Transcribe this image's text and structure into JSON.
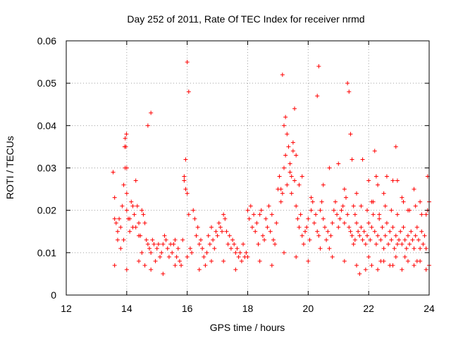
{
  "chart_data": {
    "type": "scatter",
    "title": "Day 252 of 2011, Rate Of TEC Index for receiver nrmd",
    "xlabel": "GPS time / hours",
    "ylabel": "ROTI / TECUs",
    "xlim": [
      12,
      24
    ],
    "ylim": [
      0,
      0.06
    ],
    "xticks": [
      "12",
      "14",
      "16",
      "18",
      "20",
      "22",
      "24"
    ],
    "yticks": [
      "0",
      "0.01",
      "0.02",
      "0.03",
      "0.04",
      "0.05",
      "0.06"
    ],
    "grid": true,
    "marker": "plus",
    "color": "#ff0000",
    "series": [
      {
        "x": [
          13.55,
          13.6,
          13.65,
          13.7,
          13.75,
          13.8,
          13.85,
          13.9,
          13.95,
          14.0,
          14.05,
          14.1,
          14.15,
          14.2,
          14.25,
          14.3,
          14.35,
          14.4,
          14.45,
          14.5,
          14.55,
          14.6,
          14.65,
          14.7,
          14.75,
          14.8,
          14.85,
          14.9,
          14.95,
          15.0,
          15.05,
          15.1,
          15.15,
          15.2,
          15.25,
          15.3,
          15.35,
          15.4,
          15.45,
          15.5,
          15.55,
          15.6,
          15.65,
          15.7,
          15.75,
          15.8,
          15.85,
          15.9,
          15.95,
          16.0,
          16.05,
          16.1,
          16.15,
          16.2,
          16.25,
          16.3,
          16.35,
          16.4,
          16.45,
          16.5,
          16.55,
          16.6,
          16.65,
          16.7,
          16.75,
          16.8,
          16.85,
          16.9,
          16.95,
          17.0,
          17.05,
          17.1,
          17.15,
          17.2,
          17.25,
          17.3,
          17.35,
          17.4,
          17.45,
          17.5,
          17.55,
          17.6,
          17.65,
          17.7,
          17.75,
          17.8,
          17.85,
          17.9,
          17.95,
          18.0,
          18.05,
          18.1,
          18.15,
          18.2,
          18.25,
          18.3,
          18.35,
          18.4,
          18.45,
          18.5,
          18.55,
          18.6,
          18.65,
          18.7,
          18.75,
          18.8,
          18.85,
          18.9,
          18.95,
          19.0,
          19.05,
          19.1,
          19.15,
          19.2,
          19.25,
          19.3,
          19.35,
          19.4,
          19.45,
          19.5,
          19.55,
          19.6,
          19.65,
          19.7,
          19.75,
          19.8,
          19.85,
          19.9,
          19.95,
          20.0,
          20.05,
          20.1,
          20.15,
          20.2,
          20.25,
          20.3,
          20.35,
          20.4,
          20.45,
          20.5,
          20.55,
          20.6,
          20.65,
          20.7,
          20.75,
          20.8,
          20.85,
          20.9,
          20.95,
          21.0,
          21.05,
          21.1,
          21.15,
          21.2,
          21.25,
          21.3,
          21.35,
          21.4,
          21.45,
          21.5,
          21.55,
          21.6,
          21.65,
          21.7,
          21.75,
          21.8,
          21.85,
          21.9,
          21.95,
          22.0,
          22.05,
          22.1,
          22.15,
          22.2,
          22.25,
          22.3,
          22.35,
          22.4,
          22.45,
          22.5,
          22.55,
          22.6,
          22.65,
          22.7,
          22.75,
          22.8,
          22.85,
          22.9,
          22.95,
          23.0,
          23.05,
          23.1,
          23.15,
          23.2,
          23.25,
          23.3,
          23.35,
          23.4,
          23.45,
          23.5,
          23.55,
          23.6,
          23.65,
          23.7,
          23.75,
          23.8,
          23.85,
          23.9,
          23.95,
          24.0,
          13.6,
          13.7,
          13.8,
          13.9,
          14.0,
          14.1,
          14.2,
          14.3,
          14.4,
          14.5,
          14.6,
          14.7,
          14.8,
          13.95,
          13.97,
          13.99,
          14.0,
          13.93,
          15.9,
          15.95,
          16.0,
          16.05,
          19.15,
          19.2,
          19.25,
          19.3,
          19.5,
          19.55,
          19.6,
          20.3,
          20.35,
          21.3,
          21.35,
          21.4,
          21.45,
          22.2,
          22.25,
          22.9,
          22.95,
          19.1,
          19.4,
          19.45,
          19.7,
          19.8,
          20.1,
          20.5,
          20.7,
          21.0,
          21.2,
          21.5,
          21.6,
          21.8,
          22.0,
          22.1,
          22.3,
          22.5,
          22.6,
          22.8,
          23.1,
          23.3,
          23.5,
          23.7,
          23.9,
          13.6,
          14.0,
          14.4,
          14.8,
          15.2,
          15.6,
          16.0,
          16.4,
          16.8,
          17.2,
          17.6,
          18.0,
          18.4,
          18.8,
          19.2,
          19.6,
          20.0,
          20.4,
          20.8,
          21.2,
          21.6,
          22.0,
          22.4,
          22.8,
          23.2,
          23.6,
          24.0,
          21.7,
          21.9,
          22.1,
          22.3,
          22.5,
          22.7,
          22.9,
          23.1,
          23.3,
          23.5,
          23.7,
          23.9,
          21.55,
          21.75,
          21.95,
          22.15,
          22.35,
          22.55,
          22.75,
          22.95,
          23.15,
          23.35,
          23.55,
          23.75,
          23.95
        ],
        "y": [
          0.029,
          0.023,
          0.017,
          0.013,
          0.018,
          0.016,
          0.021,
          0.026,
          0.03,
          0.02,
          0.018,
          0.015,
          0.022,
          0.016,
          0.019,
          0.027,
          0.021,
          0.017,
          0.014,
          0.02,
          0.019,
          0.017,
          0.013,
          0.012,
          0.011,
          0.01,
          0.013,
          0.012,
          0.008,
          0.011,
          0.012,
          0.009,
          0.01,
          0.012,
          0.014,
          0.013,
          0.011,
          0.009,
          0.012,
          0.01,
          0.012,
          0.013,
          0.009,
          0.011,
          0.008,
          0.007,
          0.013,
          0.028,
          0.032,
          0.024,
          0.019,
          0.011,
          0.01,
          0.02,
          0.018,
          0.014,
          0.016,
          0.012,
          0.013,
          0.011,
          0.009,
          0.007,
          0.01,
          0.014,
          0.012,
          0.016,
          0.013,
          0.011,
          0.015,
          0.014,
          0.017,
          0.016,
          0.015,
          0.019,
          0.018,
          0.015,
          0.012,
          0.014,
          0.011,
          0.013,
          0.012,
          0.01,
          0.011,
          0.009,
          0.01,
          0.008,
          0.012,
          0.009,
          0.01,
          0.02,
          0.018,
          0.021,
          0.016,
          0.019,
          0.015,
          0.017,
          0.012,
          0.019,
          0.02,
          0.014,
          0.013,
          0.018,
          0.016,
          0.021,
          0.015,
          0.019,
          0.013,
          0.012,
          0.017,
          0.025,
          0.028,
          0.022,
          0.024,
          0.03,
          0.033,
          0.026,
          0.035,
          0.031,
          0.028,
          0.036,
          0.027,
          0.021,
          0.018,
          0.016,
          0.019,
          0.014,
          0.012,
          0.015,
          0.016,
          0.018,
          0.013,
          0.02,
          0.022,
          0.017,
          0.019,
          0.015,
          0.014,
          0.02,
          0.022,
          0.018,
          0.016,
          0.013,
          0.015,
          0.011,
          0.014,
          0.017,
          0.02,
          0.022,
          0.019,
          0.016,
          0.018,
          0.02,
          0.021,
          0.017,
          0.023,
          0.019,
          0.016,
          0.015,
          0.014,
          0.012,
          0.013,
          0.017,
          0.015,
          0.014,
          0.016,
          0.013,
          0.015,
          0.012,
          0.014,
          0.017,
          0.013,
          0.016,
          0.019,
          0.015,
          0.012,
          0.014,
          0.018,
          0.013,
          0.016,
          0.011,
          0.014,
          0.017,
          0.012,
          0.015,
          0.013,
          0.016,
          0.011,
          0.014,
          0.012,
          0.013,
          0.015,
          0.012,
          0.016,
          0.013,
          0.011,
          0.014,
          0.012,
          0.015,
          0.013,
          0.011,
          0.014,
          0.016,
          0.013,
          0.011,
          0.015,
          0.012,
          0.014,
          0.011,
          0.028,
          0.022,
          0.018,
          0.015,
          0.011,
          0.013,
          0.024,
          0.018,
          0.021,
          0.016,
          0.014,
          0.01,
          0.007,
          0.04,
          0.043,
          0.037,
          0.035,
          0.038,
          0.03,
          0.035,
          0.027,
          0.025,
          0.055,
          0.048,
          0.052,
          0.04,
          0.042,
          0.038,
          0.034,
          0.044,
          0.033,
          0.047,
          0.054,
          0.05,
          0.048,
          0.038,
          0.032,
          0.034,
          0.028,
          0.035,
          0.027,
          0.025,
          0.029,
          0.024,
          0.026,
          0.028,
          0.023,
          0.026,
          0.03,
          0.031,
          0.025,
          0.021,
          0.024,
          0.032,
          0.027,
          0.022,
          0.026,
          0.024,
          0.028,
          0.027,
          0.023,
          0.02,
          0.025,
          0.022,
          0.019,
          0.007,
          0.006,
          0.008,
          0.006,
          0.005,
          0.007,
          0.009,
          0.006,
          0.008,
          0.008,
          0.006,
          0.009,
          0.008,
          0.007,
          0.01,
          0.009,
          0.008,
          0.011,
          0.009,
          0.008,
          0.007,
          0.009,
          0.008,
          0.007,
          0.009,
          0.008,
          0.007,
          0.005,
          0.006,
          0.007,
          0.006,
          0.008,
          0.007,
          0.009,
          0.006,
          0.008,
          0.007,
          0.008,
          0.006,
          0.019,
          0.021,
          0.02,
          0.022,
          0.019,
          0.021,
          0.02,
          0.019,
          0.022,
          0.02,
          0.021,
          0.019,
          0.02
        ]
      }
    ]
  }
}
